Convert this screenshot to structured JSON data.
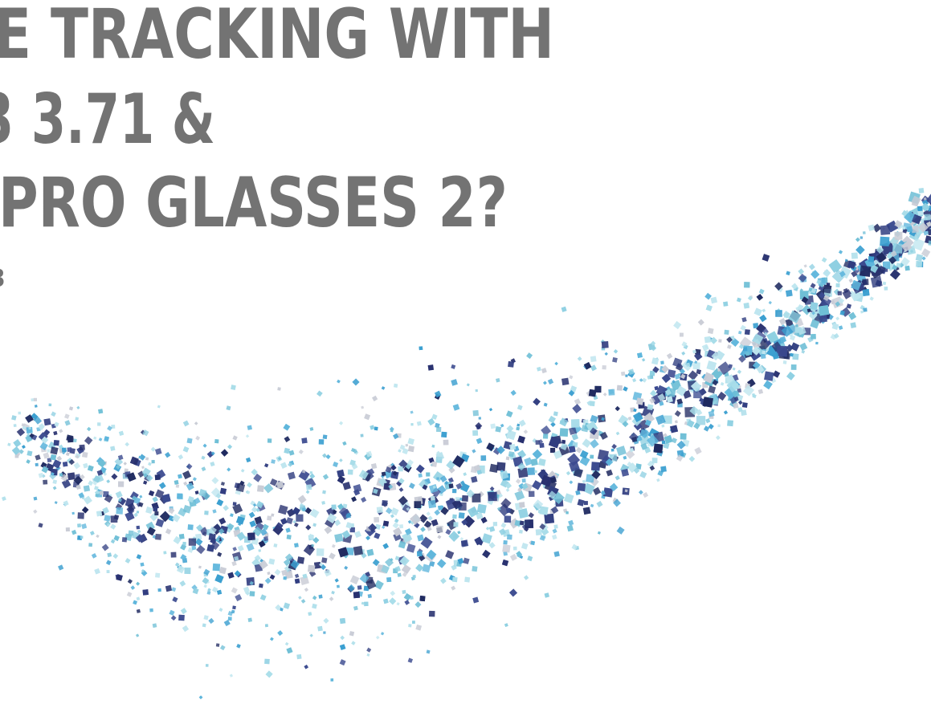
{
  "title_lines": [
    "E TRACKING WITH",
    "3 3.71 &",
    "PRO GLASSES 2?"
  ],
  "subtitle": "3"
}
